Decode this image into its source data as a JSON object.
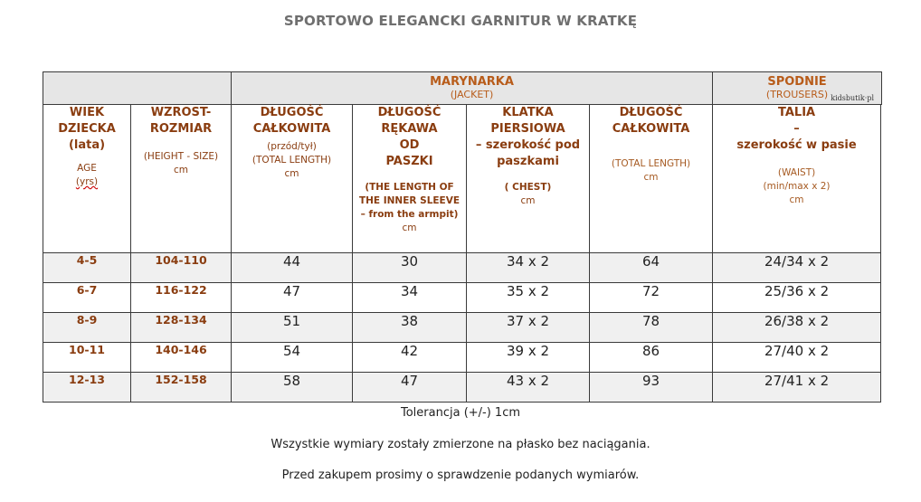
{
  "title": "SPORTOWO ELEGANCKI GARNITUR W KRATKĘ",
  "groups": {
    "jacket": {
      "label": "MARYNARKA",
      "sub": "(JACKET)"
    },
    "trousers": {
      "label": "SPODNIE",
      "sub": "(TROUSERS)"
    },
    "brand": "kidsbutik·pl"
  },
  "columns": {
    "age": {
      "l1": "WIEK",
      "l2": "DZIECKA",
      "l3": "(lata)",
      "s1": "AGE",
      "s2": "(yrs)"
    },
    "height": {
      "l1": "WZROST-",
      "l2": "ROZMIAR",
      "s1": "(HEIGHT - SIZE)",
      "s2": "cm"
    },
    "jacket_length": {
      "l1": "DŁUGOŚĆ",
      "l2": "CAŁKOWITA",
      "s1": "(przód/tył)",
      "s2": "(TOTAL LENGTH)",
      "s3": "cm"
    },
    "sleeve": {
      "l1": "DŁUGOŚĆ",
      "l2": "RĘKAWA",
      "l3": "OD",
      "l4": "PASZKI",
      "s1": "(THE LENGTH OF",
      "s2": "THE INNER SLEEVE",
      "s3": "– from the armpit)",
      "s4": "cm"
    },
    "chest": {
      "l1": "KLATKA",
      "l2": "PIERSIOWA",
      "l3": "– szerokość pod",
      "l4": "paszkami",
      "s1": "( CHEST)",
      "s2": "cm"
    },
    "trouser_length": {
      "l1": "DŁUGOŚĆ",
      "l2": "CAŁKOWITA",
      "s1": "(TOTAL LENGTH)",
      "s2": "cm"
    },
    "waist": {
      "l1": "TALIA",
      "l2": "–",
      "l3": "szerokość w pasie",
      "s1": "(WAIST)",
      "s2": "(min/max x 2)",
      "s3": "cm"
    }
  },
  "rows": [
    {
      "age": "4-5",
      "height": "104-110",
      "jacket_length": "44",
      "sleeve": "30",
      "chest": "34 x 2",
      "trouser_length": "64",
      "waist": "24/34 x 2"
    },
    {
      "age": "6-7",
      "height": "116-122",
      "jacket_length": "47",
      "sleeve": "34",
      "chest": "35 x 2",
      "trouser_length": "72",
      "waist": "25/36 x 2"
    },
    {
      "age": "8-9",
      "height": "128-134",
      "jacket_length": "51",
      "sleeve": "38",
      "chest": "37 x 2",
      "trouser_length": "78",
      "waist": "26/38 x 2"
    },
    {
      "age": "10-11",
      "height": "140-146",
      "jacket_length": "54",
      "sleeve": "42",
      "chest": "39 x 2",
      "trouser_length": "86",
      "waist": "27/40 x 2"
    },
    {
      "age": "12-13",
      "height": "152-158",
      "jacket_length": "58",
      "sleeve": "47",
      "chest": "43 x 2",
      "trouser_length": "93",
      "waist": "27/41 x 2"
    }
  ],
  "notes": {
    "tolerance": "Tolerancja (+/-) 1cm",
    "measured": "Wszystkie wymiary zostały zmierzone na płasko bez naciągania.",
    "check": "Przed zakupem prosimy o sprawdzenie podanych  wymiarów."
  }
}
